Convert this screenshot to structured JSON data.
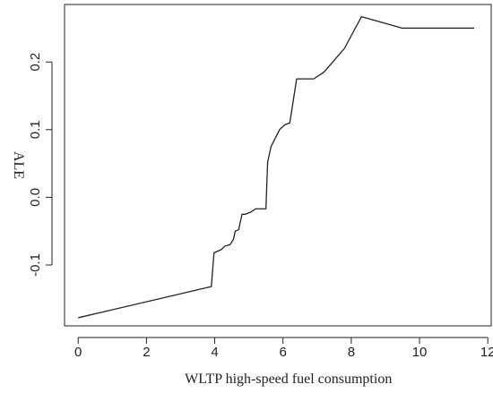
{
  "chart_data": {
    "type": "line",
    "title": "",
    "xlabel": "WLTP high-speed fuel consumption",
    "ylabel": "ALE",
    "xlim": [
      -0.4,
      12.1
    ],
    "ylim": [
      -0.19,
      0.285
    ],
    "xticks": [
      0,
      2,
      4,
      6,
      8,
      10,
      12
    ],
    "yticks": [
      -0.1,
      0.0,
      0.1,
      0.2
    ],
    "ytick_labels": [
      "-0.1",
      "0.0",
      "0.1",
      "0.2"
    ],
    "grid": false,
    "series": [
      {
        "x": [
          0.0,
          3.9,
          3.98,
          4.2,
          4.3,
          4.45,
          4.55,
          4.6,
          4.7,
          4.8,
          4.9,
          5.05,
          5.2,
          5.5,
          5.55,
          5.65,
          5.9,
          6.05,
          6.2,
          6.4,
          6.9,
          7.2,
          7.8,
          8.3,
          9.5,
          11.6
        ],
        "values": [
          -0.178,
          -0.132,
          -0.082,
          -0.077,
          -0.072,
          -0.07,
          -0.062,
          -0.05,
          -0.048,
          -0.025,
          -0.025,
          -0.022,
          -0.017,
          -0.017,
          0.052,
          0.075,
          0.1,
          0.107,
          0.11,
          0.175,
          0.175,
          0.185,
          0.22,
          0.267,
          0.25,
          0.25
        ]
      }
    ]
  }
}
